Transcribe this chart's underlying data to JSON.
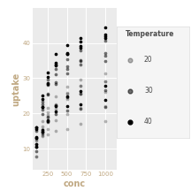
{
  "title": "",
  "xlabel": "conc",
  "ylabel": "uptake",
  "legend_title": "Temperature",
  "background_color": "#EBEBEB",
  "grid_color": "#FFFFFF",
  "axis_text_color": "#C0A882",
  "legend_text_color": "#4D4D4D",
  "point_color": "#000000",
  "alphas": {
    "20": 0.28,
    "30": 0.55,
    "40": 1.0
  },
  "legend_items": [
    {
      "label": "20",
      "alpha": 0.28
    },
    {
      "label": "30",
      "alpha": 0.55
    },
    {
      "label": "40",
      "alpha": 1.0
    }
  ],
  "xticks": [
    250,
    500,
    750,
    1000
  ],
  "yticks": [
    10,
    20,
    30,
    40
  ],
  "xlim": [
    50,
    1150
  ],
  "ylim": [
    4,
    50
  ],
  "data": [
    {
      "conc": 95,
      "uptake": 7.7,
      "temp": 20
    },
    {
      "conc": 95,
      "uptake": 10.6,
      "temp": 20
    },
    {
      "conc": 95,
      "uptake": 12.3,
      "temp": 20
    },
    {
      "conc": 95,
      "uptake": 11.3,
      "temp": 20
    },
    {
      "conc": 95,
      "uptake": 12.5,
      "temp": 20
    },
    {
      "conc": 95,
      "uptake": 7.7,
      "temp": 20
    },
    {
      "conc": 175,
      "uptake": 13.6,
      "temp": 20
    },
    {
      "conc": 175,
      "uptake": 14.9,
      "temp": 20
    },
    {
      "conc": 175,
      "uptake": 16.4,
      "temp": 20
    },
    {
      "conc": 175,
      "uptake": 15.5,
      "temp": 20
    },
    {
      "conc": 175,
      "uptake": 17.9,
      "temp": 20
    },
    {
      "conc": 175,
      "uptake": 13.8,
      "temp": 20
    },
    {
      "conc": 250,
      "uptake": 15.7,
      "temp": 20
    },
    {
      "conc": 250,
      "uptake": 18.9,
      "temp": 20
    },
    {
      "conc": 250,
      "uptake": 20.3,
      "temp": 20
    },
    {
      "conc": 250,
      "uptake": 19.7,
      "temp": 20
    },
    {
      "conc": 250,
      "uptake": 21.7,
      "temp": 20
    },
    {
      "conc": 250,
      "uptake": 14.0,
      "temp": 20
    },
    {
      "conc": 350,
      "uptake": 18.0,
      "temp": 20
    },
    {
      "conc": 350,
      "uptake": 21.4,
      "temp": 20
    },
    {
      "conc": 350,
      "uptake": 22.3,
      "temp": 20
    },
    {
      "conc": 350,
      "uptake": 22.7,
      "temp": 20
    },
    {
      "conc": 350,
      "uptake": 24.9,
      "temp": 20
    },
    {
      "conc": 350,
      "uptake": 15.0,
      "temp": 20
    },
    {
      "conc": 500,
      "uptake": 19.9,
      "temp": 20
    },
    {
      "conc": 500,
      "uptake": 24.2,
      "temp": 20
    },
    {
      "conc": 500,
      "uptake": 25.7,
      "temp": 20
    },
    {
      "conc": 500,
      "uptake": 25.9,
      "temp": 20
    },
    {
      "conc": 500,
      "uptake": 27.7,
      "temp": 20
    },
    {
      "conc": 500,
      "uptake": 15.7,
      "temp": 20
    },
    {
      "conc": 675,
      "uptake": 21.5,
      "temp": 20
    },
    {
      "conc": 675,
      "uptake": 25.5,
      "temp": 20
    },
    {
      "conc": 675,
      "uptake": 27.8,
      "temp": 20
    },
    {
      "conc": 675,
      "uptake": 27.8,
      "temp": 20
    },
    {
      "conc": 675,
      "uptake": 29.6,
      "temp": 20
    },
    {
      "conc": 675,
      "uptake": 17.0,
      "temp": 20
    },
    {
      "conc": 1000,
      "uptake": 22.2,
      "temp": 20
    },
    {
      "conc": 1000,
      "uptake": 26.2,
      "temp": 20
    },
    {
      "conc": 1000,
      "uptake": 29.1,
      "temp": 20
    },
    {
      "conc": 1000,
      "uptake": 29.2,
      "temp": 20
    },
    {
      "conc": 1000,
      "uptake": 31.3,
      "temp": 20
    },
    {
      "conc": 1000,
      "uptake": 17.9,
      "temp": 20
    },
    {
      "conc": 95,
      "uptake": 9.3,
      "temp": 30
    },
    {
      "conc": 95,
      "uptake": 15.1,
      "temp": 30
    },
    {
      "conc": 95,
      "uptake": 16.2,
      "temp": 30
    },
    {
      "conc": 95,
      "uptake": 13.1,
      "temp": 30
    },
    {
      "conc": 95,
      "uptake": 16.0,
      "temp": 30
    },
    {
      "conc": 95,
      "uptake": 10.5,
      "temp": 30
    },
    {
      "conc": 175,
      "uptake": 14.4,
      "temp": 30
    },
    {
      "conc": 175,
      "uptake": 21.0,
      "temp": 30
    },
    {
      "conc": 175,
      "uptake": 22.5,
      "temp": 30
    },
    {
      "conc": 175,
      "uptake": 19.8,
      "temp": 30
    },
    {
      "conc": 175,
      "uptake": 23.4,
      "temp": 30
    },
    {
      "conc": 175,
      "uptake": 14.9,
      "temp": 30
    },
    {
      "conc": 250,
      "uptake": 19.1,
      "temp": 30
    },
    {
      "conc": 250,
      "uptake": 25.7,
      "temp": 30
    },
    {
      "conc": 250,
      "uptake": 28.1,
      "temp": 30
    },
    {
      "conc": 250,
      "uptake": 25.4,
      "temp": 30
    },
    {
      "conc": 250,
      "uptake": 29.7,
      "temp": 30
    },
    {
      "conc": 250,
      "uptake": 17.7,
      "temp": 30
    },
    {
      "conc": 350,
      "uptake": 22.3,
      "temp": 30
    },
    {
      "conc": 350,
      "uptake": 28.8,
      "temp": 30
    },
    {
      "conc": 350,
      "uptake": 31.1,
      "temp": 30
    },
    {
      "conc": 350,
      "uptake": 28.4,
      "temp": 30
    },
    {
      "conc": 350,
      "uptake": 32.5,
      "temp": 30
    },
    {
      "conc": 350,
      "uptake": 19.9,
      "temp": 30
    },
    {
      "conc": 500,
      "uptake": 24.5,
      "temp": 30
    },
    {
      "conc": 500,
      "uptake": 32.7,
      "temp": 30
    },
    {
      "conc": 500,
      "uptake": 33.3,
      "temp": 30
    },
    {
      "conc": 500,
      "uptake": 31.4,
      "temp": 30
    },
    {
      "conc": 500,
      "uptake": 35.4,
      "temp": 30
    },
    {
      "conc": 500,
      "uptake": 20.9,
      "temp": 30
    },
    {
      "conc": 675,
      "uptake": 25.5,
      "temp": 30
    },
    {
      "conc": 675,
      "uptake": 35.0,
      "temp": 30
    },
    {
      "conc": 675,
      "uptake": 35.1,
      "temp": 30
    },
    {
      "conc": 675,
      "uptake": 33.9,
      "temp": 30
    },
    {
      "conc": 675,
      "uptake": 38.0,
      "temp": 30
    },
    {
      "conc": 675,
      "uptake": 21.4,
      "temp": 30
    },
    {
      "conc": 1000,
      "uptake": 26.5,
      "temp": 30
    },
    {
      "conc": 1000,
      "uptake": 36.5,
      "temp": 30
    },
    {
      "conc": 1000,
      "uptake": 37.1,
      "temp": 30
    },
    {
      "conc": 1000,
      "uptake": 35.0,
      "temp": 30
    },
    {
      "conc": 1000,
      "uptake": 40.6,
      "temp": 30
    },
    {
      "conc": 1000,
      "uptake": 21.9,
      "temp": 30
    },
    {
      "conc": 95,
      "uptake": 10.5,
      "temp": 40
    },
    {
      "conc": 95,
      "uptake": 13.4,
      "temp": 40
    },
    {
      "conc": 95,
      "uptake": 16.2,
      "temp": 40
    },
    {
      "conc": 95,
      "uptake": 13.0,
      "temp": 40
    },
    {
      "conc": 95,
      "uptake": 15.7,
      "temp": 40
    },
    {
      "conc": 95,
      "uptake": 11.3,
      "temp": 40
    },
    {
      "conc": 175,
      "uptake": 14.9,
      "temp": 40
    },
    {
      "conc": 175,
      "uptake": 21.9,
      "temp": 40
    },
    {
      "conc": 175,
      "uptake": 24.0,
      "temp": 40
    },
    {
      "conc": 175,
      "uptake": 21.9,
      "temp": 40
    },
    {
      "conc": 175,
      "uptake": 25.1,
      "temp": 40
    },
    {
      "conc": 175,
      "uptake": 15.4,
      "temp": 40
    },
    {
      "conc": 250,
      "uptake": 18.1,
      "temp": 40
    },
    {
      "conc": 250,
      "uptake": 28.5,
      "temp": 40
    },
    {
      "conc": 250,
      "uptake": 30.3,
      "temp": 40
    },
    {
      "conc": 250,
      "uptake": 28.4,
      "temp": 40
    },
    {
      "conc": 250,
      "uptake": 31.5,
      "temp": 40
    },
    {
      "conc": 250,
      "uptake": 17.9,
      "temp": 40
    },
    {
      "conc": 350,
      "uptake": 22.2,
      "temp": 40
    },
    {
      "conc": 350,
      "uptake": 33.8,
      "temp": 40
    },
    {
      "conc": 350,
      "uptake": 34.5,
      "temp": 40
    },
    {
      "conc": 350,
      "uptake": 33.5,
      "temp": 40
    },
    {
      "conc": 350,
      "uptake": 36.9,
      "temp": 40
    },
    {
      "conc": 350,
      "uptake": 20.5,
      "temp": 40
    },
    {
      "conc": 500,
      "uptake": 24.8,
      "temp": 40
    },
    {
      "conc": 500,
      "uptake": 37.1,
      "temp": 40
    },
    {
      "conc": 500,
      "uptake": 36.9,
      "temp": 40
    },
    {
      "conc": 500,
      "uptake": 36.9,
      "temp": 40
    },
    {
      "conc": 500,
      "uptake": 39.3,
      "temp": 40
    },
    {
      "conc": 500,
      "uptake": 22.2,
      "temp": 40
    },
    {
      "conc": 675,
      "uptake": 26.3,
      "temp": 40
    },
    {
      "conc": 675,
      "uptake": 40.3,
      "temp": 40
    },
    {
      "conc": 675,
      "uptake": 38.6,
      "temp": 40
    },
    {
      "conc": 675,
      "uptake": 39.2,
      "temp": 40
    },
    {
      "conc": 675,
      "uptake": 41.4,
      "temp": 40
    },
    {
      "conc": 675,
      "uptake": 22.6,
      "temp": 40
    },
    {
      "conc": 1000,
      "uptake": 27.8,
      "temp": 40
    },
    {
      "conc": 1000,
      "uptake": 42.4,
      "temp": 40
    },
    {
      "conc": 1000,
      "uptake": 41.4,
      "temp": 40
    },
    {
      "conc": 1000,
      "uptake": 41.8,
      "temp": 40
    },
    {
      "conc": 1000,
      "uptake": 44.3,
      "temp": 40
    },
    {
      "conc": 1000,
      "uptake": 23.9,
      "temp": 40
    }
  ]
}
